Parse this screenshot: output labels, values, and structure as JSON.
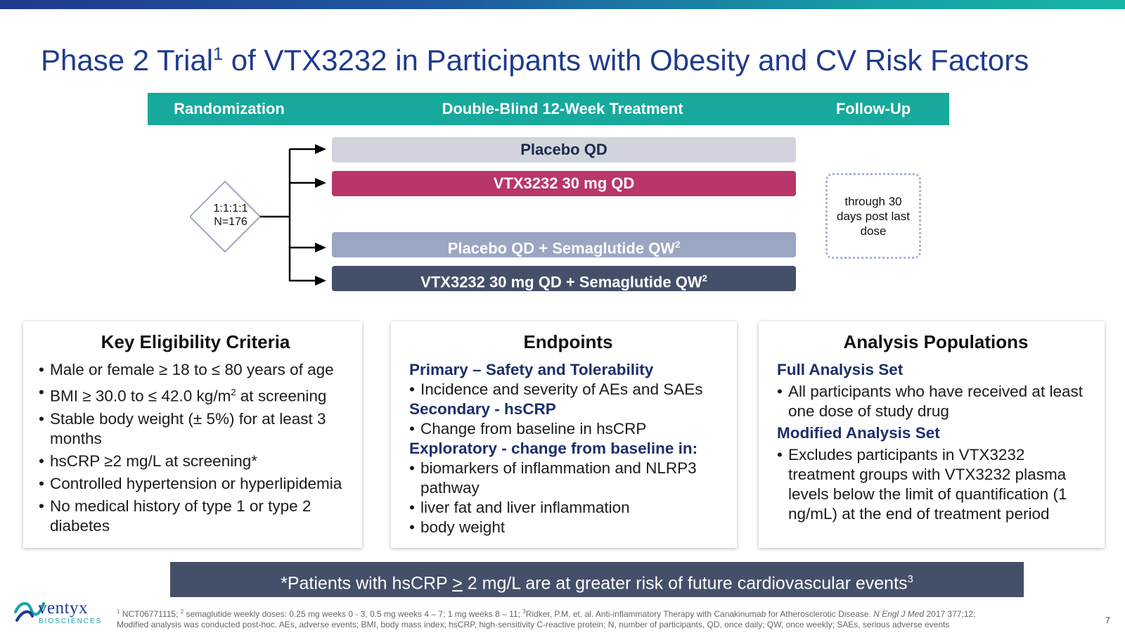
{
  "title": {
    "pre": "Phase 2 Trial",
    "sup": "1",
    "post": " of VTX3232 in Participants with Obesity and CV Risk Factors"
  },
  "phases": [
    "Randomization",
    "Double-Blind 12-Week Treatment",
    "Follow-Up"
  ],
  "randomization": {
    "ratio": "1:1:1:1",
    "n": "N=176"
  },
  "arms": {
    "placebo": "Placebo QD",
    "vtx30": "VTX3232 30 mg QD",
    "placebo_sema": "Placebo QD + Semaglutide QW",
    "placebo_sema_sup": "2",
    "vtx30_sema": "VTX3232 30 mg QD + Semaglutide QW",
    "vtx30_sema_sup": "2"
  },
  "followup": {
    "text": "through 30 days post last dose"
  },
  "eligibility": {
    "title": "Key Eligibility Criteria",
    "items": [
      "Male or female ≥ 18 to ≤ 80 years of age",
      "BMI ≥ 30.0 to ≤ 42.0 kg/m",
      "Stable body weight (± 5%) for at least 3 months",
      "hsCRP ≥2 mg/L at screening*",
      "Controlled hypertension or hyperlipidemia",
      "No medical history of type 1 or type 2 diabetes"
    ],
    "bmi_sup": "2",
    "bmi_tail": " at screening"
  },
  "endpoints": {
    "title": "Endpoints",
    "primary": "Primary – Safety and Tolerability",
    "primary_items": [
      "Incidence and severity of AEs and SAEs"
    ],
    "secondary": "Secondary - hsCRP",
    "secondary_items": [
      "Change from baseline in hsCRP"
    ],
    "exploratory": "Exploratory - change from baseline in:",
    "exploratory_items": [
      "biomarkers of inflammation and NLRP3 pathway",
      "liver fat and liver inflammation",
      "body weight"
    ]
  },
  "analysis": {
    "title": "Analysis Populations",
    "full": "Full Analysis Set",
    "full_items": [
      "All participants who have received at least one dose of study drug"
    ],
    "modified": "Modified Analysis Set",
    "modified_items": [
      "Excludes participants in VTX3232 treatment groups with VTX3232 plasma levels below the limit of quantification (1 ng/mL) at the end of treatment period"
    ]
  },
  "banner": {
    "pre": "*Patients with hsCRP ",
    "ge": ">",
    "post": " 2 mg/L are at greater risk of future cardiovascular events",
    "sup": "3"
  },
  "logo": {
    "name": "ventyx",
    "sub": "BIOSCIENCES"
  },
  "footnote": {
    "line1_a": "NCT06771115; ",
    "line1_b": "semaglutide weekly doses: 0.25 mg weeks 0 - 3, 0.5 mg weeks 4 – 7; 1 mg  weeks 8 – 11; ",
    "line1_c": "Ridker, P.M. et. al. Anti-inflammatory Therapy with Canakinumab for Atherosclerotic Disease. ",
    "journal": "N Engl J Med",
    "line1_d": " 2017 377;12;",
    "line2": "Modified analysis was conducted post-hoc. AEs, adverse events; BMI, body mass index; hsCRP, high-sensitivity C-reactive protein; N, number of participants, QD, once daily; QW, once weekly; SAEs, serious adverse events",
    "sup1": "1",
    "sup2": "2",
    "sup3": "3"
  },
  "page_number": "7",
  "colors": {
    "title": "#1f3b8f",
    "phase_bar": "#17a99c",
    "placebo": "#d1d4dc",
    "vtx30": "#b8366a",
    "placebo_sema": "#9aa6c2",
    "vtx30_sema": "#445069",
    "banner": "#445069"
  }
}
